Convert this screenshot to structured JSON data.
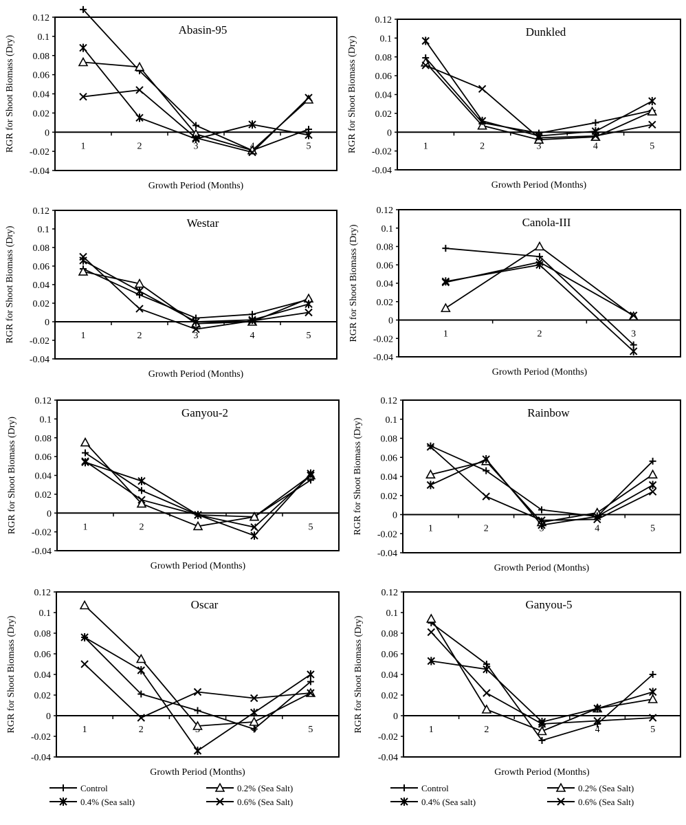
{
  "chart_data": [
    {
      "type": "line",
      "title": "Abasin-95",
      "xlabel": "Growth Period (Months)",
      "ylabel": "RGR for Shoot Biomass (Dry)",
      "x": [
        1,
        2,
        3,
        4,
        5
      ],
      "ylim": [
        -0.04,
        0.12
      ],
      "yticks": [
        "0.12",
        "0.1",
        "0.08",
        "0.06",
        "0.04",
        "0.02",
        "0",
        "-0.02",
        "-0.04"
      ],
      "ytick_values": [
        0.12,
        0.1,
        0.08,
        0.06,
        0.04,
        0.02,
        0,
        -0.02,
        -0.04
      ],
      "xticks": [
        "1",
        "2",
        "3",
        "4",
        "5"
      ],
      "series": [
        {
          "name": "Control",
          "marker": "plus",
          "values": [
            0.128,
            0.064,
            0.007,
            -0.019,
            0.003
          ]
        },
        {
          "name": "0.2% (Sea Salt)",
          "marker": "triangle",
          "values": [
            0.073,
            0.068,
            -0.002,
            -0.019,
            0.034
          ]
        },
        {
          "name": "0.4% (Sea salt)",
          "marker": "asterisk",
          "values": [
            0.088,
            0.015,
            -0.007,
            0.008,
            -0.003
          ]
        },
        {
          "name": "0.6% (Sea Salt)",
          "marker": "x",
          "values": [
            0.037,
            0.044,
            -0.006,
            -0.021,
            0.036
          ]
        }
      ]
    },
    {
      "type": "line",
      "title": "Dunkled",
      "xlabel": "Growth Period (Months)",
      "ylabel": "RGR for Shoot Biomass (Dry)",
      "x": [
        1,
        2,
        3,
        4,
        5
      ],
      "ylim": [
        -0.04,
        0.12
      ],
      "yticks": [
        "0.12",
        "0.1",
        "0.08",
        "0.06",
        "0.04",
        "0.02",
        "0",
        "-0.02",
        "-0.04"
      ],
      "ytick_values": [
        0.12,
        0.1,
        0.08,
        0.06,
        0.04,
        0.02,
        0,
        -0.02,
        -0.04
      ],
      "xticks": [
        "1",
        "2",
        "3",
        "4",
        "5"
      ],
      "series": [
        {
          "name": "Control",
          "marker": "plus",
          "values": [
            0.079,
            0.01,
            -0.001,
            0.01,
            0.023
          ]
        },
        {
          "name": "0.2% (Sea Salt)",
          "marker": "triangle",
          "values": [
            0.074,
            0.007,
            -0.008,
            -0.005,
            0.022
          ]
        },
        {
          "name": "0.4% (Sea salt)",
          "marker": "asterisk",
          "values": [
            0.097,
            0.012,
            -0.004,
            0.001,
            0.033
          ]
        },
        {
          "name": "0.6% (Sea Salt)",
          "marker": "x",
          "values": [
            0.071,
            0.046,
            -0.006,
            -0.004,
            0.008
          ]
        }
      ]
    },
    {
      "type": "line",
      "title": "Westar",
      "xlabel": "Growth Period (Months)",
      "ylabel": "RGR for Shoot Biomass (Dry)",
      "x": [
        1,
        2,
        3,
        4,
        5
      ],
      "ylim": [
        -0.04,
        0.12
      ],
      "yticks": [
        "0.12",
        "0.1",
        "0.08",
        "0.06",
        "0.04",
        "0.02",
        "0",
        "-0.02",
        "-0.04"
      ],
      "ytick_values": [
        0.12,
        0.1,
        0.08,
        0.06,
        0.04,
        0.02,
        0,
        -0.02,
        -0.04
      ],
      "xticks": [
        "1",
        "2",
        "3",
        "4",
        "5"
      ],
      "series": [
        {
          "name": "Control",
          "marker": "plus",
          "values": [
            0.057,
            0.029,
            0.004,
            0.008,
            0.024
          ]
        },
        {
          "name": "0.2% (Sea Salt)",
          "marker": "triangle",
          "values": [
            0.054,
            0.041,
            -0.002,
            0.0,
            0.025
          ]
        },
        {
          "name": "0.4% (Sea salt)",
          "marker": "asterisk",
          "values": [
            0.066,
            0.033,
            0.0,
            0.002,
            0.019
          ]
        },
        {
          "name": "0.6% (Sea Salt)",
          "marker": "x",
          "values": [
            0.07,
            0.014,
            -0.008,
            0.001,
            0.01
          ]
        }
      ]
    },
    {
      "type": "line",
      "title": "Canola-III",
      "xlabel": "Growth Period (Months)",
      "ylabel": "RGR for Shoot Biomass (Dry)",
      "x": [
        1,
        2,
        3
      ],
      "ylim": [
        -0.04,
        0.12
      ],
      "yticks": [
        "0.12",
        "0.1",
        "0.08",
        "0.06",
        "0.04",
        "0.02",
        "0",
        "-0.02",
        "-0.04"
      ],
      "ytick_values": [
        0.12,
        0.1,
        0.08,
        0.06,
        0.04,
        0.02,
        0,
        -0.02,
        -0.04
      ],
      "xticks": [
        "1",
        "2",
        "3"
      ],
      "series": [
        {
          "name": "Control",
          "marker": "plus",
          "values": [
            0.078,
            0.069,
            -0.027
          ]
        },
        {
          "name": "0.2% (Sea Salt)",
          "marker": "triangle",
          "values": [
            0.013,
            0.08,
            0.004
          ]
        },
        {
          "name": "0.4% (Sea salt)",
          "marker": "asterisk",
          "values": [
            0.042,
            0.06,
            -0.034
          ]
        },
        {
          "name": "0.6% (Sea Salt)",
          "marker": "x",
          "values": [
            0.041,
            0.063,
            0.005
          ]
        }
      ]
    },
    {
      "type": "line",
      "title": "Ganyou-2",
      "xlabel": "Growth Period (Months)",
      "ylabel": "RGR for Shoot Biomass (Dry)",
      "x": [
        1,
        2,
        3,
        4,
        5
      ],
      "ylim": [
        -0.04,
        0.12
      ],
      "yticks": [
        "0.12",
        "0.1",
        "0.08",
        "0.06",
        "0.04",
        "0.02",
        "0",
        "-0.02",
        "-0.04"
      ],
      "ytick_values": [
        0.12,
        0.1,
        0.08,
        0.06,
        0.04,
        0.02,
        0,
        -0.02,
        -0.04
      ],
      "xticks": [
        "1",
        "2",
        "3",
        "4",
        "5"
      ],
      "series": [
        {
          "name": "Control",
          "marker": "plus",
          "values": [
            0.064,
            0.024,
            -0.002,
            -0.004,
            0.035
          ]
        },
        {
          "name": "0.2% (Sea Salt)",
          "marker": "triangle",
          "values": [
            0.075,
            0.01,
            -0.014,
            -0.004,
            0.04
          ]
        },
        {
          "name": "0.4% (Sea salt)",
          "marker": "asterisk",
          "values": [
            0.054,
            0.034,
            -0.002,
            -0.024,
            0.042
          ]
        },
        {
          "name": "0.6% (Sea Salt)",
          "marker": "x",
          "values": [
            0.055,
            0.014,
            -0.002,
            -0.015,
            0.04
          ]
        }
      ]
    },
    {
      "type": "line",
      "title": "Rainbow",
      "xlabel": "Growth Period (Months)",
      "ylabel": "RGR for Shoot Biomass (Dry)",
      "x": [
        1,
        2,
        3,
        4,
        5
      ],
      "ylim": [
        -0.04,
        0.12
      ],
      "yticks": [
        "0.12",
        "0.1",
        "0.08",
        "0.06",
        "0.04",
        "0.02",
        "0",
        "-0.02",
        "-0.04"
      ],
      "ytick_values": [
        0.12,
        0.1,
        0.08,
        0.06,
        0.04,
        0.02,
        0,
        -0.02,
        -0.04
      ],
      "xticks": [
        "1",
        "2",
        "3",
        "4",
        "5"
      ],
      "series": [
        {
          "name": "Control",
          "marker": "plus",
          "values": [
            0.072,
            0.046,
            0.005,
            -0.002,
            0.056
          ]
        },
        {
          "name": "0.2% (Sea Salt)",
          "marker": "triangle",
          "values": [
            0.042,
            0.056,
            -0.008,
            0.002,
            0.042
          ]
        },
        {
          "name": "0.4% (Sea salt)",
          "marker": "asterisk",
          "values": [
            0.031,
            0.058,
            -0.011,
            -0.002,
            0.031
          ]
        },
        {
          "name": "0.6% (Sea Salt)",
          "marker": "x",
          "values": [
            0.071,
            0.019,
            -0.006,
            -0.005,
            0.024
          ]
        }
      ]
    },
    {
      "type": "line",
      "title": "Oscar",
      "xlabel": "Growth Period (Months)",
      "ylabel": "RGR for Shoot Biomass (Dry)",
      "x": [
        1,
        2,
        3,
        4,
        5
      ],
      "ylim": [
        -0.04,
        0.12
      ],
      "yticks": [
        "0.12",
        "0.1",
        "0.08",
        "0.06",
        "0.04",
        "0.02",
        "0",
        "-0.02",
        "-0.04"
      ],
      "ytick_values": [
        0.12,
        0.1,
        0.08,
        0.06,
        0.04,
        0.02,
        0,
        -0.02,
        -0.04
      ],
      "xticks": [
        "1",
        "2",
        "3",
        "4",
        "5"
      ],
      "series": [
        {
          "name": "Control",
          "marker": "plus",
          "values": [
            0.076,
            0.021,
            0.005,
            -0.013,
            0.033
          ]
        },
        {
          "name": "0.2% (Sea Salt)",
          "marker": "triangle",
          "values": [
            0.107,
            0.055,
            -0.01,
            -0.006,
            0.022
          ]
        },
        {
          "name": "0.4% (Sea salt)",
          "marker": "asterisk",
          "values": [
            0.076,
            0.044,
            -0.034,
            0.003,
            0.04
          ]
        },
        {
          "name": "0.6% (Sea Salt)",
          "marker": "x",
          "values": [
            0.05,
            -0.002,
            0.023,
            0.017,
            0.022
          ]
        }
      ]
    },
    {
      "type": "line",
      "title": "Ganyou-5",
      "xlabel": "Growth Period (Months)",
      "ylabel": "RGR for Shoot Biomass (Dry)",
      "x": [
        1,
        2,
        3,
        4,
        5
      ],
      "ylim": [
        -0.04,
        0.12
      ],
      "yticks": [
        "0.12",
        "0.1",
        "0.08",
        "0.06",
        "0.04",
        "0.02",
        "0",
        "-0.02",
        "-0.04"
      ],
      "ytick_values": [
        0.12,
        0.1,
        0.08,
        0.06,
        0.04,
        0.02,
        0,
        -0.02,
        -0.04
      ],
      "xticks": [
        "1",
        "2",
        "3",
        "4",
        "5"
      ],
      "series": [
        {
          "name": "Control",
          "marker": "plus",
          "values": [
            0.09,
            0.05,
            -0.024,
            -0.008,
            0.04
          ]
        },
        {
          "name": "0.2% (Sea Salt)",
          "marker": "triangle",
          "values": [
            0.094,
            0.006,
            -0.015,
            0.007,
            0.016
          ]
        },
        {
          "name": "0.4% (Sea salt)",
          "marker": "asterisk",
          "values": [
            0.053,
            0.045,
            -0.006,
            0.007,
            0.023
          ]
        },
        {
          "name": "0.6% (Sea Salt)",
          "marker": "x",
          "values": [
            0.081,
            0.022,
            -0.008,
            -0.005,
            -0.002
          ]
        }
      ]
    }
  ],
  "legends": [
    {
      "items": [
        {
          "label": "Control",
          "marker": "plus"
        },
        {
          "label": "0.2% (Sea Salt)",
          "marker": "triangle"
        },
        {
          "label": "0.4% (Sea salt)",
          "marker": "asterisk"
        },
        {
          "label": "0.6% (Sea Salt)",
          "marker": "x"
        }
      ]
    },
    {
      "items": [
        {
          "label": "Control",
          "marker": "plus"
        },
        {
          "label": "0.2% (Sea Salt)",
          "marker": "triangle"
        },
        {
          "label": "0.4% (Sea salt)",
          "marker": "asterisk"
        },
        {
          "label": "0.6% (Sea Salt)",
          "marker": "x"
        }
      ]
    }
  ],
  "colors": {
    "line": "#000000",
    "background": "#ffffff"
  }
}
